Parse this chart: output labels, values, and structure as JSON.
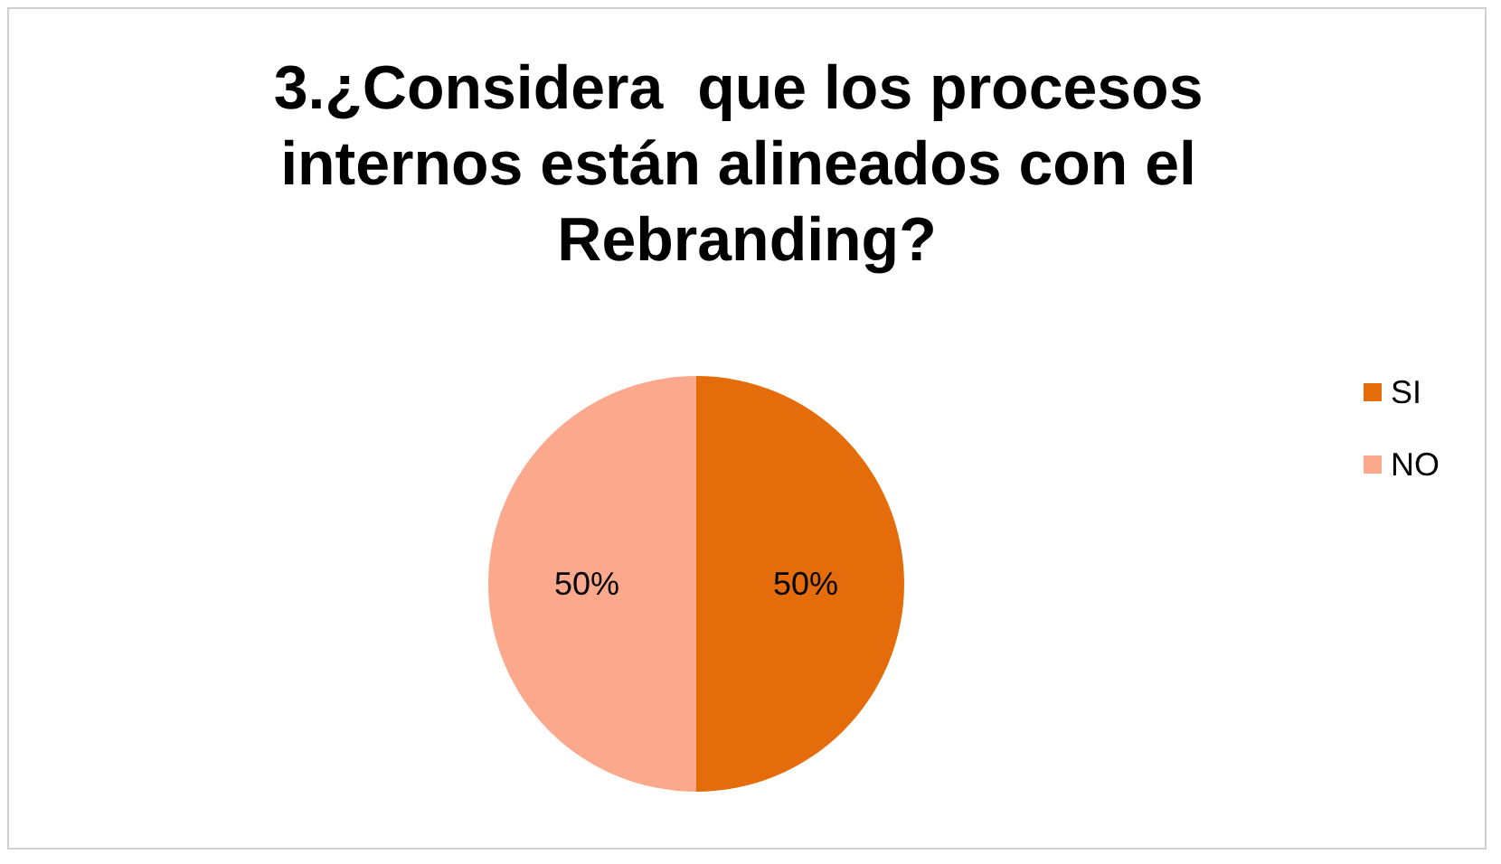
{
  "chart_data": {
    "type": "pie",
    "title": "3.¿Considera  que los procesos internos están alineados con el Rebranding?",
    "categories": [
      "SI",
      "NO"
    ],
    "values": [
      50,
      50
    ],
    "colors": [
      "#e46c0a",
      "#fba88c"
    ],
    "value_labels": [
      "50%",
      "50%"
    ],
    "legend": "right"
  }
}
